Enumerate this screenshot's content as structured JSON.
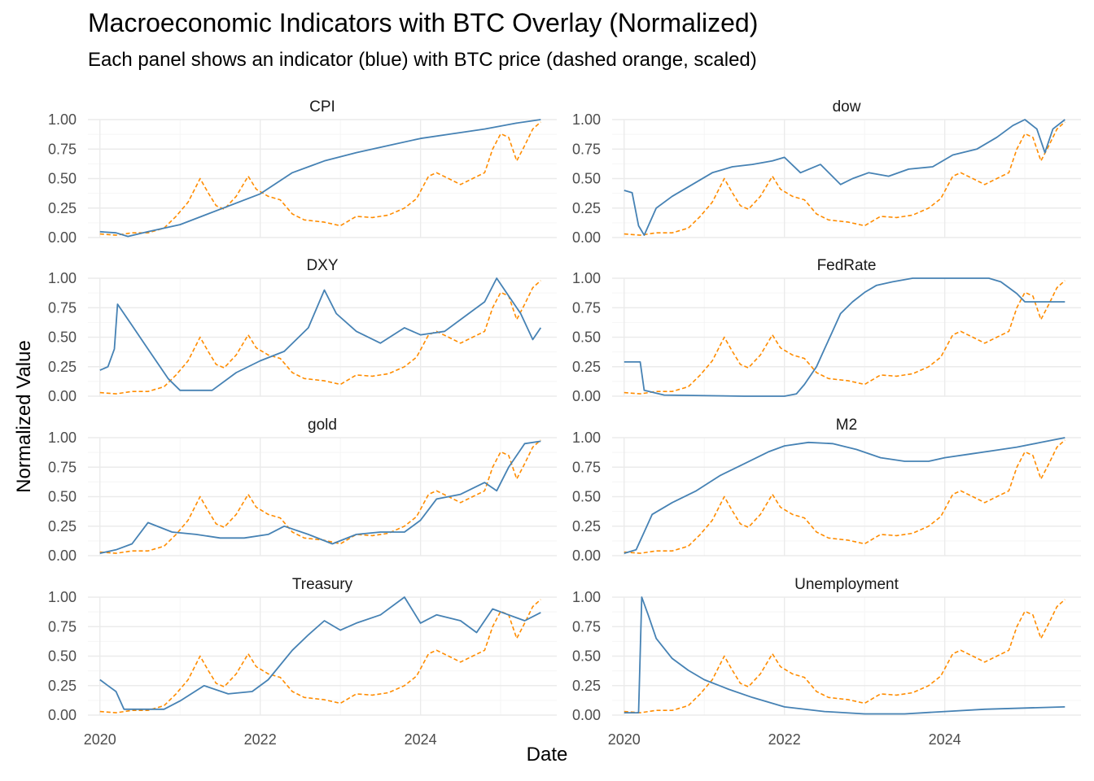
{
  "title": "Macroeconomic Indicators with BTC Overlay (Normalized)",
  "subtitle": "Each panel shows an indicator (blue) with BTC price (dashed orange, scaled)",
  "colors": {
    "indicator": "#4682B4",
    "btc": "#FF8C00",
    "grid_major": "#EBEBEB",
    "grid_minor": "#F5F5F5"
  },
  "chart_data": {
    "type": "line",
    "layout": "facet_wrap 2 columns x 4 rows",
    "xlabel": "Date",
    "ylabel": "Normalized Value",
    "xlim": [
      2019.85,
      2025.7
    ],
    "ylim": [
      0,
      1
    ],
    "x_ticks": [
      2020,
      2022,
      2024
    ],
    "x_tick_labels": [
      "2020",
      "2022",
      "2024"
    ],
    "y_ticks": [
      0,
      0.25,
      0.5,
      0.75,
      1.0
    ],
    "y_tick_labels": [
      "0.00",
      "0.25",
      "0.50",
      "0.75",
      "1.00"
    ],
    "grid": true,
    "btc": {
      "style": "dashed",
      "x": [
        2020.0,
        2020.2,
        2020.4,
        2020.6,
        2020.8,
        2020.95,
        2021.1,
        2021.25,
        2021.35,
        2021.45,
        2021.55,
        2021.7,
        2021.85,
        2021.95,
        2022.1,
        2022.25,
        2022.4,
        2022.55,
        2022.8,
        2023.0,
        2023.2,
        2023.4,
        2023.6,
        2023.8,
        2023.95,
        2024.1,
        2024.2,
        2024.35,
        2024.5,
        2024.65,
        2024.8,
        2024.9,
        2025.0,
        2025.1,
        2025.2,
        2025.3,
        2025.4,
        2025.5
      ],
      "values": [
        0.03,
        0.02,
        0.04,
        0.04,
        0.08,
        0.18,
        0.3,
        0.5,
        0.38,
        0.27,
        0.24,
        0.35,
        0.52,
        0.41,
        0.35,
        0.32,
        0.2,
        0.15,
        0.13,
        0.1,
        0.18,
        0.17,
        0.19,
        0.25,
        0.33,
        0.52,
        0.55,
        0.5,
        0.45,
        0.5,
        0.55,
        0.75,
        0.88,
        0.85,
        0.65,
        0.78,
        0.92,
        0.98
      ]
    },
    "panels": [
      {
        "name": "CPI",
        "x": [
          2020.0,
          2020.2,
          2020.35,
          2020.6,
          2021.0,
          2021.5,
          2022.0,
          2022.4,
          2022.8,
          2023.2,
          2023.6,
          2024.0,
          2024.4,
          2024.8,
          2025.2,
          2025.5
        ],
        "values": [
          0.05,
          0.04,
          0.01,
          0.05,
          0.11,
          0.24,
          0.37,
          0.55,
          0.65,
          0.72,
          0.78,
          0.84,
          0.88,
          0.92,
          0.97,
          1.0
        ]
      },
      {
        "name": "dow",
        "x": [
          2020.0,
          2020.1,
          2020.18,
          2020.25,
          2020.4,
          2020.6,
          2020.85,
          2021.1,
          2021.35,
          2021.6,
          2021.85,
          2022.0,
          2022.2,
          2022.45,
          2022.7,
          2022.85,
          2023.05,
          2023.3,
          2023.55,
          2023.85,
          2024.1,
          2024.4,
          2024.65,
          2024.85,
          2025.0,
          2025.15,
          2025.25,
          2025.35,
          2025.5
        ],
        "values": [
          0.4,
          0.38,
          0.1,
          0.02,
          0.25,
          0.35,
          0.45,
          0.55,
          0.6,
          0.62,
          0.65,
          0.68,
          0.55,
          0.62,
          0.45,
          0.5,
          0.55,
          0.52,
          0.58,
          0.6,
          0.7,
          0.75,
          0.85,
          0.95,
          1.0,
          0.92,
          0.72,
          0.92,
          1.0
        ]
      },
      {
        "name": "DXY",
        "x": [
          2020.0,
          2020.1,
          2020.18,
          2020.22,
          2020.4,
          2020.6,
          2020.85,
          2021.0,
          2021.4,
          2021.7,
          2022.0,
          2022.3,
          2022.6,
          2022.8,
          2022.95,
          2023.2,
          2023.5,
          2023.8,
          2024.0,
          2024.3,
          2024.6,
          2024.8,
          2024.95,
          2025.1,
          2025.25,
          2025.4,
          2025.5
        ],
        "values": [
          0.22,
          0.25,
          0.4,
          0.78,
          0.6,
          0.4,
          0.15,
          0.05,
          0.05,
          0.2,
          0.3,
          0.38,
          0.58,
          0.9,
          0.7,
          0.55,
          0.45,
          0.58,
          0.52,
          0.55,
          0.7,
          0.8,
          1.0,
          0.85,
          0.7,
          0.48,
          0.58
        ]
      },
      {
        "name": "FedRate",
        "x": [
          2020.0,
          2020.2,
          2020.25,
          2020.5,
          2021.5,
          2022.0,
          2022.15,
          2022.25,
          2022.4,
          2022.5,
          2022.6,
          2022.7,
          2022.85,
          2023.0,
          2023.15,
          2023.35,
          2023.6,
          2024.0,
          2024.55,
          2024.7,
          2024.8,
          2024.9,
          2025.0,
          2025.5
        ],
        "values": [
          0.29,
          0.29,
          0.05,
          0.01,
          0.0,
          0.0,
          0.02,
          0.1,
          0.25,
          0.4,
          0.55,
          0.7,
          0.8,
          0.88,
          0.94,
          0.97,
          1.0,
          1.0,
          1.0,
          0.97,
          0.92,
          0.87,
          0.8,
          0.8
        ]
      },
      {
        "name": "gold",
        "x": [
          2020.0,
          2020.2,
          2020.4,
          2020.6,
          2020.9,
          2021.2,
          2021.5,
          2021.8,
          2022.1,
          2022.3,
          2022.6,
          2022.9,
          2023.2,
          2023.5,
          2023.8,
          2024.0,
          2024.2,
          2024.5,
          2024.8,
          2024.95,
          2025.1,
          2025.3,
          2025.5
        ],
        "values": [
          0.02,
          0.05,
          0.1,
          0.28,
          0.2,
          0.18,
          0.15,
          0.15,
          0.18,
          0.25,
          0.18,
          0.1,
          0.18,
          0.2,
          0.2,
          0.3,
          0.48,
          0.52,
          0.62,
          0.55,
          0.75,
          0.95,
          0.97
        ]
      },
      {
        "name": "M2",
        "x": [
          2020.0,
          2020.15,
          2020.25,
          2020.35,
          2020.6,
          2020.9,
          2021.2,
          2021.5,
          2021.8,
          2022.0,
          2022.3,
          2022.6,
          2022.9,
          2023.2,
          2023.5,
          2023.8,
          2024.0,
          2024.3,
          2024.6,
          2024.9,
          2025.2,
          2025.5
        ],
        "values": [
          0.02,
          0.05,
          0.2,
          0.35,
          0.45,
          0.55,
          0.68,
          0.78,
          0.88,
          0.93,
          0.96,
          0.95,
          0.9,
          0.83,
          0.8,
          0.8,
          0.83,
          0.86,
          0.89,
          0.92,
          0.96,
          1.0
        ]
      },
      {
        "name": "Treasury",
        "x": [
          2020.0,
          2020.1,
          2020.2,
          2020.3,
          2020.5,
          2020.8,
          2021.0,
          2021.3,
          2021.6,
          2021.9,
          2022.1,
          2022.4,
          2022.6,
          2022.8,
          2023.0,
          2023.2,
          2023.5,
          2023.8,
          2024.0,
          2024.2,
          2024.5,
          2024.7,
          2024.9,
          2025.1,
          2025.3,
          2025.5
        ],
        "values": [
          0.3,
          0.25,
          0.2,
          0.05,
          0.05,
          0.05,
          0.12,
          0.25,
          0.18,
          0.2,
          0.3,
          0.55,
          0.68,
          0.8,
          0.72,
          0.78,
          0.85,
          1.0,
          0.78,
          0.85,
          0.8,
          0.7,
          0.9,
          0.85,
          0.8,
          0.87
        ]
      },
      {
        "name": "Unemployment",
        "x": [
          2020.0,
          2020.18,
          2020.22,
          2020.3,
          2020.4,
          2020.6,
          2020.8,
          2021.0,
          2021.3,
          2021.6,
          2022.0,
          2022.5,
          2023.0,
          2023.5,
          2024.0,
          2024.5,
          2025.0,
          2025.5
        ],
        "values": [
          0.02,
          0.02,
          1.0,
          0.85,
          0.65,
          0.48,
          0.38,
          0.3,
          0.22,
          0.15,
          0.07,
          0.03,
          0.01,
          0.01,
          0.03,
          0.05,
          0.06,
          0.07
        ]
      }
    ]
  }
}
